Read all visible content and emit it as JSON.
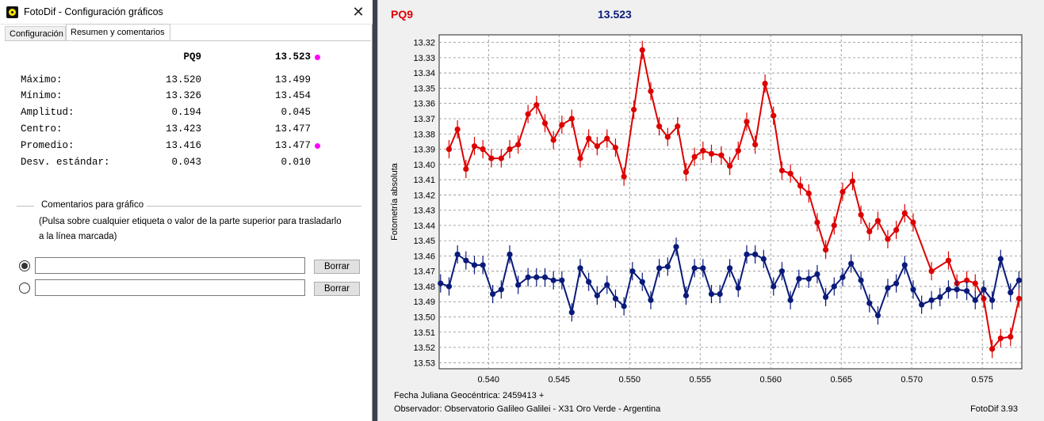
{
  "window": {
    "title": "FotoDif - Configuración gráficos",
    "close_glyph": "✕"
  },
  "tabs": [
    {
      "label": "Configuración",
      "active": false
    },
    {
      "label": "Resumen y comentarios",
      "active": true
    }
  ],
  "summary": {
    "col1_header": "PQ9",
    "col2_header": "13.523",
    "marker_color": "#ff00ff",
    "rows": [
      {
        "label": "Máximo:",
        "v1": "13.520",
        "v2": "13.499"
      },
      {
        "label": "Mínimo:",
        "v1": "13.326",
        "v2": "13.454"
      },
      {
        "label": "Amplitud:",
        "v1": "0.194",
        "v2": "0.045"
      },
      {
        "label": "Centro:",
        "v1": "13.423",
        "v2": "13.477"
      },
      {
        "label": "Promedio:",
        "v1": "13.416",
        "v2": "13.477"
      },
      {
        "label": "Desv. estándar:",
        "v1": "0.043",
        "v2": "0.010"
      }
    ]
  },
  "comments": {
    "title": "Comentarios para gráfico",
    "hint_line1": "(Pulsa sobre cualquier etiqueta o valor de la parte superior para trasladarlo",
    "hint_line2": "a la línea marcada)",
    "line1_value": "",
    "line2_value": "",
    "clear_label": "Borrar"
  },
  "chart_header": {
    "series1_label": "PQ9",
    "series1_color": "#dd0000",
    "series2_label": "13.523",
    "series2_color": "#0a1a7a"
  },
  "footer": {
    "line1": "Fecha Juliana Geocéntrica: 2459413 +",
    "line2": "Observador: Observatorio Galileo Galilei - X31 Oro Verde - Argentina",
    "version": "FotoDif 3.93"
  },
  "chart_data": {
    "type": "line",
    "ylabel": "Fotometría absoluta",
    "xlabel": "Fecha Juliana Geocéntrica: 2459413 +",
    "y_inverted": true,
    "xlim": [
      0.5365,
      0.5778
    ],
    "ylim": [
      13.315,
      13.534
    ],
    "x_ticks": [
      "0.540",
      "0.545",
      "0.550",
      "0.555",
      "0.560",
      "0.565",
      "0.570",
      "0.575"
    ],
    "y_ticks": [
      "13.32",
      "13.33",
      "13.34",
      "13.35",
      "13.36",
      "13.37",
      "13.38",
      "13.39",
      "13.40",
      "13.41",
      "13.42",
      "13.43",
      "13.44",
      "13.45",
      "13.46",
      "13.47",
      "13.48",
      "13.49",
      "13.50",
      "13.51",
      "13.52",
      "13.53"
    ],
    "grid": true,
    "error": 0.006,
    "series": [
      {
        "name": "PQ9",
        "color": "#dd0000",
        "x": [
          0.5372,
          0.5378,
          0.5384,
          0.539,
          0.5396,
          0.5402,
          0.5409,
          0.5415,
          0.5421,
          0.5428,
          0.5434,
          0.544,
          0.5446,
          0.5452,
          0.5459,
          0.5465,
          0.5471,
          0.5477,
          0.5484,
          0.549,
          0.5496,
          0.5503,
          0.5509,
          0.5515,
          0.5521,
          0.5527,
          0.5534,
          0.554,
          0.5546,
          0.5552,
          0.5558,
          0.5565,
          0.5571,
          0.5577,
          0.5583,
          0.5589,
          0.5596,
          0.5602,
          0.5608,
          0.5614,
          0.5621,
          0.5627,
          0.5633,
          0.5639,
          0.5645,
          0.5651,
          0.5658,
          0.5664,
          0.567,
          0.5676,
          0.5683,
          0.5689,
          0.5695,
          0.5701,
          0.5714,
          0.5726,
          0.5732,
          0.5739,
          0.5745,
          0.5751,
          0.5757,
          0.5763,
          0.577,
          0.5776
        ],
        "y": [
          13.39,
          13.377,
          13.403,
          13.388,
          13.39,
          13.396,
          13.396,
          13.39,
          13.387,
          13.367,
          13.361,
          13.373,
          13.384,
          13.374,
          13.37,
          13.396,
          13.383,
          13.388,
          13.383,
          13.389,
          13.408,
          13.364,
          13.325,
          13.352,
          13.375,
          13.382,
          13.375,
          13.405,
          13.395,
          13.391,
          13.393,
          13.394,
          13.401,
          13.391,
          13.372,
          13.387,
          13.347,
          13.368,
          13.404,
          13.406,
          13.414,
          13.419,
          13.438,
          13.456,
          13.44,
          13.418,
          13.411,
          13.433,
          13.444,
          13.437,
          13.449,
          13.443,
          13.432,
          13.438,
          13.47,
          13.463,
          13.478,
          13.476,
          13.478,
          13.488,
          13.521,
          13.514,
          13.513,
          13.488
        ]
      },
      {
        "name": "13.523",
        "color": "#0a1a7a",
        "x": [
          0.5366,
          0.5372,
          0.5378,
          0.5384,
          0.539,
          0.5396,
          0.5403,
          0.5409,
          0.5415,
          0.5421,
          0.5428,
          0.5434,
          0.544,
          0.5446,
          0.5452,
          0.5459,
          0.5465,
          0.5471,
          0.5477,
          0.5484,
          0.549,
          0.5496,
          0.5502,
          0.5509,
          0.5515,
          0.5521,
          0.5527,
          0.5533,
          0.554,
          0.5546,
          0.5552,
          0.5558,
          0.5564,
          0.5571,
          0.5577,
          0.5583,
          0.5589,
          0.5595,
          0.5602,
          0.5608,
          0.5614,
          0.562,
          0.5627,
          0.5633,
          0.5639,
          0.5645,
          0.5651,
          0.5657,
          0.5664,
          0.567,
          0.5676,
          0.5683,
          0.5689,
          0.5695,
          0.5701,
          0.5707,
          0.5714,
          0.572,
          0.5726,
          0.5732,
          0.5739,
          0.5745,
          0.5751,
          0.5757,
          0.5763,
          0.577,
          0.5776
        ],
        "y": [
          13.478,
          13.48,
          13.459,
          13.463,
          13.466,
          13.466,
          13.485,
          13.482,
          13.459,
          13.479,
          13.474,
          13.474,
          13.474,
          13.476,
          13.476,
          13.497,
          13.468,
          13.477,
          13.486,
          13.479,
          13.488,
          13.493,
          13.47,
          13.477,
          13.489,
          13.468,
          13.467,
          13.454,
          13.486,
          13.468,
          13.468,
          13.485,
          13.485,
          13.468,
          13.481,
          13.459,
          13.459,
          13.462,
          13.48,
          13.47,
          13.489,
          13.475,
          13.475,
          13.472,
          13.487,
          13.48,
          13.474,
          13.465,
          13.476,
          13.491,
          13.499,
          13.481,
          13.478,
          13.466,
          13.482,
          13.492,
          13.489,
          13.487,
          13.482,
          13.482,
          13.483,
          13.489,
          13.482,
          13.489,
          13.462,
          13.484,
          13.476
        ]
      }
    ]
  }
}
